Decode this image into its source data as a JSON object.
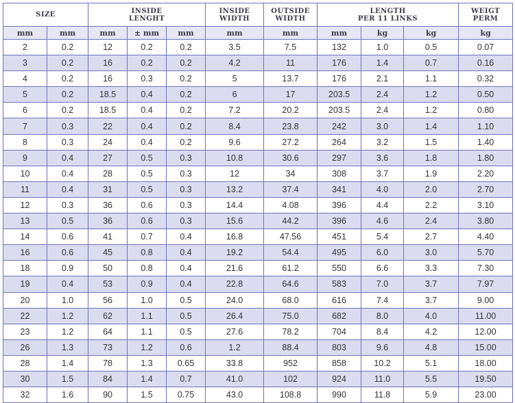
{
  "header": {
    "groups": [
      "SIZE",
      "INSIDE LENGHT",
      "INSIDE WIDTH",
      "OUTSIDE WIDTH",
      "LENGTH PER 11 LINKS",
      "WEIGT PERM"
    ],
    "group_lines": {
      "size": [
        "SIZE"
      ],
      "inside_length": [
        "INSIDE",
        "LENGHT"
      ],
      "inside_width": [
        "INSIDE",
        "WIDTH"
      ],
      "outside_width": [
        "OUTSIDE",
        "WIDTH"
      ],
      "length_11": [
        "LENGTH",
        "PER 11 LINKS"
      ],
      "weight": [
        "WEIGT",
        "PERM"
      ]
    },
    "units": [
      "mm",
      "mm",
      "mm",
      "± mm",
      "mm",
      "mm",
      "mm",
      "mm",
      "kg",
      "kg",
      "kg"
    ]
  },
  "rows": [
    [
      "2",
      "0.2",
      "12",
      "0.2",
      "0.2",
      "3.5",
      "7.5",
      "132",
      "1.0",
      "0.5",
      "0.07"
    ],
    [
      "3",
      "0.2",
      "16",
      "0.2",
      "0.2",
      "4.2",
      "11",
      "176",
      "1.4",
      "0.7",
      "0.16"
    ],
    [
      "4",
      "0.2",
      "16",
      "0.3",
      "0.2",
      "5",
      "13.7",
      "176",
      "2.1",
      "1.1",
      "0.32"
    ],
    [
      "5",
      "0.2",
      "18.5",
      "0.4",
      "0.2",
      "6",
      "17",
      "203.5",
      "2.4",
      "1.2",
      "0.50"
    ],
    [
      "6",
      "0.2",
      "18.5",
      "0.4",
      "0.2",
      "7.2",
      "20.2",
      "203.5",
      "2.4",
      "1.2",
      "0.80"
    ],
    [
      "7",
      "0.3",
      "22",
      "0.4",
      "0.2",
      "8.4",
      "23.8",
      "242",
      "3.0",
      "1.4",
      "1.10"
    ],
    [
      "8",
      "0.3",
      "24",
      "0.4",
      "0.2",
      "9.6",
      "27.2",
      "264",
      "3.2",
      "1.5",
      "1.40"
    ],
    [
      "9",
      "0.4",
      "27",
      "0.5",
      "0.3",
      "10.8",
      "30.6",
      "297",
      "3.6",
      "1.8",
      "1.80"
    ],
    [
      "10",
      "0.4",
      "28",
      "0.5",
      "0.3",
      "12",
      "34",
      "308",
      "3.7",
      "1.9",
      "2.20"
    ],
    [
      "11",
      "0.4",
      "31",
      "0.5",
      "0.3",
      "13.2",
      "37.4",
      "341",
      "4.0",
      "2.0",
      "2.70"
    ],
    [
      "12",
      "0.3",
      "36",
      "0.6",
      "0.3",
      "14.4",
      "4.08",
      "396",
      "4.4",
      "2.2",
      "3.10"
    ],
    [
      "13",
      "0.5",
      "36",
      "0.6",
      "0.3",
      "15.6",
      "44.2",
      "396",
      "4.6",
      "2.4",
      "3.80"
    ],
    [
      "14",
      "0.6",
      "41",
      "0.7",
      "0.4",
      "16.8",
      "47.56",
      "451",
      "5.4",
      "2.7",
      "4.40"
    ],
    [
      "16",
      "0.6",
      "45",
      "0.8",
      "0.4",
      "19.2",
      "54.4",
      "495",
      "6.0",
      "3.0",
      "5.70"
    ],
    [
      "18",
      "0.9",
      "50",
      "0.8",
      "0.4",
      "21.6",
      "61.2",
      "550",
      "6.6",
      "3.3",
      "7.30"
    ],
    [
      "19",
      "0.4",
      "53",
      "0.9",
      "0.4",
      "22.8",
      "64.6",
      "583",
      "7.0",
      "3.7",
      "7.97"
    ],
    [
      "20",
      "1.0",
      "56",
      "1.0",
      "0.5",
      "24.0",
      "68.0",
      "616",
      "7.4",
      "3.7",
      "9.00"
    ],
    [
      "22",
      "1.2",
      "62",
      "1.1",
      "0.5",
      "26.4",
      "75.0",
      "682",
      "8.0",
      "4.0",
      "11.00"
    ],
    [
      "23",
      "1.2",
      "64",
      "1.1",
      "0.5",
      "27.6",
      "78.2",
      "704",
      "8.4",
      "4.2",
      "12.00"
    ],
    [
      "26",
      "1.3",
      "73",
      "1.2",
      "0.6",
      "1.2",
      "88.4",
      "803",
      "9.6",
      "4.8",
      "15.00"
    ],
    [
      "28",
      "1.4",
      "78",
      "1.3",
      "0.65",
      "33.8",
      "952",
      "858",
      "10.2",
      "5.1",
      "18.00"
    ],
    [
      "30",
      "1.5",
      "84",
      "1.4",
      "0.7",
      "41.0",
      "102",
      "924",
      "11.0",
      "5.5",
      "19.50"
    ],
    [
      "32",
      "1.6",
      "90",
      "1.5",
      "0.75",
      "43.0",
      "108.8",
      "990",
      "11.8",
      "5.9",
      "23.00"
    ]
  ],
  "colors": {
    "border": "#6c72b8",
    "stripe": "#dcdcf0",
    "unit_header": "#e6e6f5"
  }
}
